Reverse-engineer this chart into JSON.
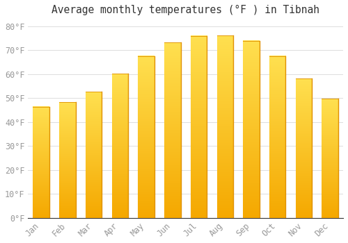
{
  "title": "Average monthly temperatures (°F ) in Tibnah",
  "months": [
    "Jan",
    "Feb",
    "Mar",
    "Apr",
    "May",
    "Jun",
    "Jul",
    "Aug",
    "Sep",
    "Oct",
    "Nov",
    "Dec"
  ],
  "values": [
    46.4,
    48.2,
    52.7,
    60.1,
    67.5,
    73.2,
    75.9,
    76.1,
    73.9,
    67.5,
    58.1,
    49.8
  ],
  "bar_color_bottom": "#F5A800",
  "bar_color_top": "#FFE066",
  "bar_color_right_edge": "#E09000",
  "background_color": "#FFFFFF",
  "plot_bg_color": "#FFFFFF",
  "grid_color": "#DDDDDD",
  "ytick_labels": [
    "0°F",
    "10°F",
    "20°F",
    "30°F",
    "40°F",
    "50°F",
    "60°F",
    "70°F",
    "80°F"
  ],
  "ytick_values": [
    0,
    10,
    20,
    30,
    40,
    50,
    60,
    70,
    80
  ],
  "ylim": [
    0,
    83
  ],
  "title_fontsize": 10.5,
  "tick_fontsize": 8.5,
  "tick_color": "#999999",
  "font_family": "monospace",
  "bar_width": 0.62,
  "figsize": [
    5.0,
    3.5
  ],
  "dpi": 100
}
